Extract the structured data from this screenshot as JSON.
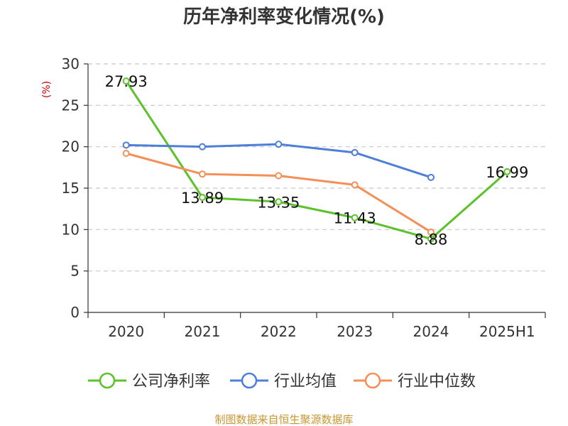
{
  "chart_data": {
    "type": "line",
    "title": "历年净利率变化情况(%)",
    "ylabel": "(%)",
    "xlabel": "",
    "categories": [
      "2020",
      "2021",
      "2022",
      "2023",
      "2024",
      "2025H1"
    ],
    "ylim": [
      0,
      30
    ],
    "yticks": [
      0,
      5,
      10,
      15,
      20,
      25,
      30
    ],
    "grid": true,
    "legend_position": "bottom",
    "series": [
      {
        "name": "公司净利率",
        "color": "#5cc12b",
        "values": [
          27.93,
          13.89,
          13.35,
          11.43,
          8.88,
          16.99
        ],
        "labels": [
          "27.93",
          "13.89",
          "13.35",
          "11.43",
          "8.88",
          "16.99"
        ]
      },
      {
        "name": "行业均值",
        "color": "#4d7fd8",
        "values": [
          20.2,
          20.0,
          20.3,
          19.3,
          16.3,
          null
        ]
      },
      {
        "name": "行业中位数",
        "color": "#f58f58",
        "values": [
          19.2,
          16.7,
          16.5,
          15.4,
          9.7,
          null
        ]
      }
    ]
  },
  "source_note": "制图数据来自恒生聚源数据库"
}
